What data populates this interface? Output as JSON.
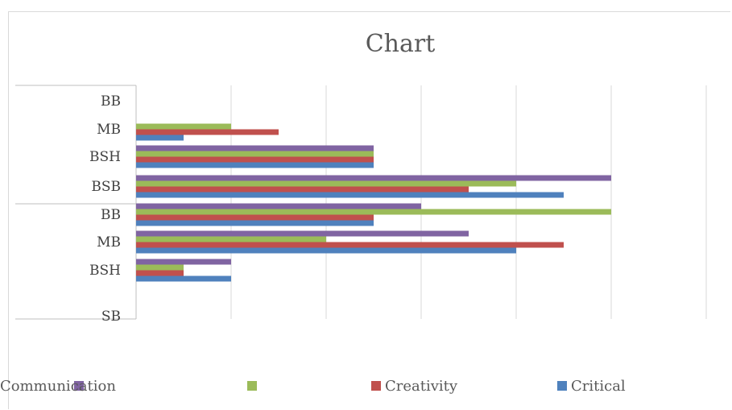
{
  "chart_data": {
    "type": "bar",
    "orientation": "horizontal",
    "title": "Chart",
    "category_labels": [
      "BB",
      "MB",
      "BSH",
      "BSB",
      "BB",
      "MB",
      "BSH",
      "SB"
    ],
    "series": [
      {
        "name": "",
        "color": "#8064A2",
        "values": [
          0,
          0,
          5,
          10,
          6,
          7,
          2,
          0
        ]
      },
      {
        "name": "Communication",
        "color": "#9BBB59",
        "values": [
          0,
          2,
          5,
          8,
          10,
          4,
          1,
          0
        ]
      },
      {
        "name": "Creativity",
        "color": "#C0504D",
        "values": [
          0,
          3,
          5,
          7,
          5,
          9,
          1,
          0
        ]
      },
      {
        "name": "Critical",
        "color": "#4F81BD",
        "values": [
          0,
          1,
          5,
          9,
          5,
          8,
          2,
          0
        ]
      }
    ],
    "xlim": [
      0,
      12
    ],
    "grid": true,
    "legend_position": "bottom"
  }
}
